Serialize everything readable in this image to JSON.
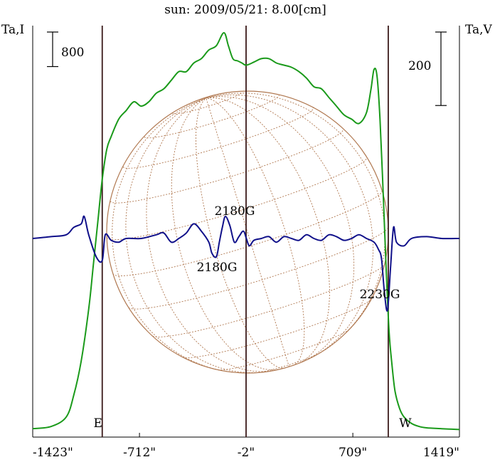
{
  "chart_data": {
    "type": "line",
    "title": "sun: 2009/05/21: 8.00[cm]",
    "left_axis_label": "Ta,I",
    "right_axis_label": "Ta,V",
    "x_ticks": [
      "-1423\"",
      "-712\"",
      "-2\"",
      "709\"",
      "1419\""
    ],
    "x_tick_values": [
      -1423,
      -712,
      -2,
      709,
      1419
    ],
    "xlim": [
      -1423,
      1419
    ],
    "ylim_I": [
      0,
      9200
    ],
    "ylim_V": [
      -560,
      560
    ],
    "scale_bar_I": {
      "label": "800",
      "value": 800
    },
    "scale_bar_V": {
      "label": "200",
      "value": 200
    },
    "limb_markers": [
      {
        "label": "E",
        "x": -960
      },
      {
        "label": "W",
        "x": 945
      }
    ],
    "center_line_x": -2,
    "annotations": [
      {
        "text": "2180G",
        "x": 0,
        "V": 90
      },
      {
        "text": "2180G",
        "x": -190,
        "V": -80
      },
      {
        "text": "2230G",
        "x": 925,
        "V": -160
      }
    ],
    "series": [
      {
        "color": "#1a9a1a",
        "axis": "I",
        "x": [
          -1423,
          -1300,
          -1200,
          -1150,
          -1100,
          -1050,
          -1020,
          -990,
          -960,
          -930,
          -900,
          -850,
          -800,
          -750,
          -700,
          -650,
          -600,
          -550,
          -500,
          -450,
          -400,
          -350,
          -300,
          -250,
          -200,
          -150,
          -120,
          -90,
          -60,
          -30,
          0,
          50,
          100,
          150,
          200,
          250,
          300,
          350,
          400,
          450,
          500,
          550,
          600,
          650,
          700,
          750,
          800,
          830,
          850,
          870,
          890,
          910,
          930,
          950,
          970,
          990,
          1020,
          1050,
          1100,
          1150,
          1200,
          1300,
          1419
        ],
        "values": [
          30,
          80,
          300,
          800,
          1600,
          2800,
          3800,
          4800,
          5800,
          6500,
          6800,
          7200,
          7400,
          7600,
          7500,
          7600,
          7800,
          7900,
          8100,
          8300,
          8300,
          8500,
          8600,
          8800,
          8900,
          9200,
          8900,
          8600,
          8550,
          8500,
          8450,
          8520,
          8600,
          8600,
          8500,
          8450,
          8400,
          8300,
          8150,
          7950,
          7900,
          7700,
          7500,
          7300,
          7200,
          7100,
          7350,
          7900,
          8350,
          8200,
          7200,
          5600,
          3800,
          2300,
          1500,
          900,
          500,
          300,
          150,
          80,
          50,
          30,
          10
        ]
      },
      {
        "color": "#10108a",
        "axis": "V",
        "x": [
          -1423,
          -1300,
          -1200,
          -1150,
          -1100,
          -1080,
          -1050,
          -1000,
          -960,
          -940,
          -900,
          -850,
          -800,
          -700,
          -600,
          -550,
          -500,
          -450,
          -400,
          -350,
          -300,
          -250,
          -230,
          -200,
          -180,
          -160,
          -140,
          -110,
          -80,
          -50,
          -20,
          0,
          20,
          50,
          100,
          150,
          200,
          250,
          300,
          350,
          400,
          450,
          500,
          550,
          600,
          650,
          700,
          750,
          800,
          850,
          880,
          900,
          920,
          940,
          960,
          980,
          1000,
          1050,
          1100,
          1200,
          1300,
          1419
        ],
        "values": [
          0,
          5,
          10,
          30,
          40,
          60,
          10,
          -50,
          -60,
          10,
          -5,
          -10,
          0,
          0,
          10,
          15,
          -10,
          0,
          15,
          40,
          20,
          -10,
          -40,
          -50,
          -10,
          30,
          60,
          35,
          -10,
          5,
          20,
          0,
          -20,
          -5,
          0,
          5,
          -10,
          5,
          0,
          -5,
          10,
          0,
          -5,
          10,
          5,
          -5,
          0,
          10,
          0,
          -10,
          -30,
          -55,
          -150,
          -195,
          -80,
          30,
          -10,
          -20,
          0,
          5,
          0,
          0
        ]
      }
    ]
  }
}
